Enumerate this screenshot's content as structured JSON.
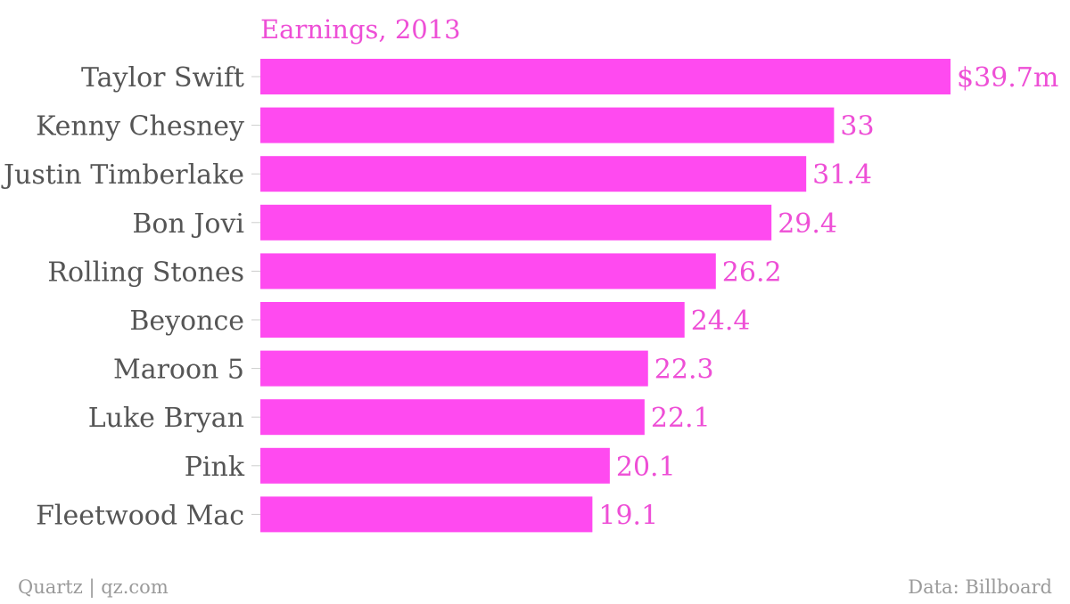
{
  "chart_data": {
    "type": "bar",
    "orientation": "horizontal",
    "title": "Earnings, 2013",
    "categories": [
      "Taylor Swift",
      "Kenny Chesney",
      "Justin Timberlake",
      "Bon Jovi",
      "Rolling Stones",
      "Beyonce",
      "Maroon 5",
      "Luke Bryan",
      "Pink",
      "Fleetwood Mac"
    ],
    "values": [
      39.7,
      33,
      31.4,
      29.4,
      26.2,
      24.4,
      22.3,
      22.1,
      20.1,
      19.1
    ],
    "value_labels": [
      "$39.7m",
      "33",
      "31.4",
      "29.4",
      "26.2",
      "24.4",
      "22.3",
      "22.1",
      "20.1",
      "19.1"
    ],
    "xlim": [
      0,
      39.7
    ],
    "grid": false,
    "colors": {
      "bar": "#ff4af0",
      "title": "#ee4fd6",
      "value_label": "#ee4fd6",
      "category_label": "#555555"
    }
  },
  "footer": {
    "source_left": "Quartz | qz.com",
    "source_right": "Data: Billboard"
  }
}
